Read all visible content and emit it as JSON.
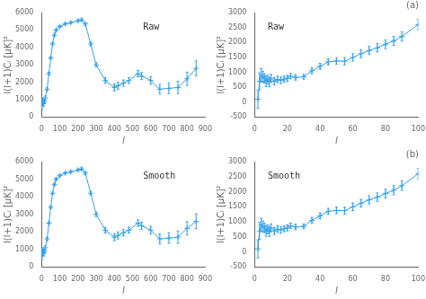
{
  "chart_data": [
    {
      "type": "line",
      "marker": "plus",
      "grid": false,
      "annotation": "Raw",
      "xlabel": "l",
      "ylabel": "l(l+1)Cₗ [μK]²",
      "xlim": [
        0,
        900
      ],
      "ylim": [
        0,
        6000
      ],
      "xticks": [
        0,
        100,
        200,
        300,
        400,
        500,
        600,
        700,
        800,
        900
      ],
      "yticks": [
        0,
        1000,
        2000,
        3000,
        4000,
        5000,
        6000
      ],
      "x": [
        2,
        4,
        6,
        8,
        10,
        15,
        20,
        30,
        40,
        50,
        60,
        70,
        80,
        100,
        130,
        160,
        200,
        220,
        240,
        270,
        300,
        350,
        400,
        420,
        450,
        480,
        530,
        550,
        600,
        650,
        700,
        750,
        800,
        850
      ],
      "values": [
        750,
        900,
        850,
        780,
        800,
        900,
        1100,
        1600,
        2500,
        3400,
        4200,
        4700,
        5000,
        5200,
        5350,
        5420,
        5530,
        5580,
        5350,
        4200,
        3000,
        2100,
        1700,
        1800,
        1950,
        2100,
        2500,
        2350,
        2100,
        1600,
        1650,
        1700,
        2200,
        2800
      ],
      "errors": [
        300,
        200,
        180,
        160,
        150,
        120,
        100,
        80,
        70,
        65,
        60,
        55,
        55,
        50,
        55,
        60,
        65,
        70,
        80,
        100,
        120,
        160,
        200,
        200,
        180,
        170,
        180,
        200,
        220,
        280,
        300,
        350,
        380,
        420
      ]
    },
    {
      "type": "line",
      "marker": "plus",
      "grid": false,
      "title": "(a)",
      "annotation": "Raw",
      "xlabel": "l",
      "ylabel": "l(l+1)Cₗ [μK]²",
      "xlim": [
        0,
        100
      ],
      "ylim": [
        -500,
        3000
      ],
      "xticks": [
        0,
        20,
        40,
        60,
        80,
        100
      ],
      "yticks": [
        -500,
        0,
        500,
        1000,
        1500,
        2000,
        2500,
        3000
      ],
      "x": [
        2,
        3,
        4,
        5,
        6,
        7,
        8,
        9,
        10,
        12,
        14,
        16,
        18,
        20,
        22,
        25,
        30,
        35,
        40,
        45,
        50,
        55,
        60,
        65,
        70,
        75,
        80,
        85,
        90,
        100
      ],
      "values": [
        100,
        700,
        900,
        850,
        800,
        700,
        750,
        680,
        800,
        700,
        760,
        730,
        770,
        800,
        870,
        830,
        850,
        1050,
        1200,
        1350,
        1380,
        1370,
        1500,
        1620,
        1730,
        1820,
        1940,
        2050,
        2200,
        2600
      ],
      "errors": [
        300,
        280,
        220,
        180,
        160,
        180,
        150,
        160,
        130,
        120,
        110,
        110,
        100,
        100,
        90,
        90,
        80,
        100,
        100,
        100,
        110,
        120,
        125,
        130,
        135,
        140,
        145,
        150,
        155,
        175
      ]
    },
    {
      "type": "line",
      "marker": "plus",
      "grid": false,
      "annotation": "Smooth",
      "xlabel": "l",
      "ylabel": "l(l+1)Cₗ [μK]²",
      "xlim": [
        0,
        900
      ],
      "ylim": [
        0,
        6000
      ],
      "xticks": [
        0,
        100,
        200,
        300,
        400,
        500,
        600,
        700,
        800,
        900
      ],
      "yticks": [
        0,
        1000,
        2000,
        3000,
        4000,
        5000,
        6000
      ],
      "x": [
        2,
        4,
        6,
        8,
        10,
        15,
        20,
        30,
        40,
        50,
        60,
        70,
        80,
        100,
        130,
        160,
        200,
        220,
        240,
        270,
        300,
        350,
        400,
        420,
        450,
        480,
        530,
        550,
        600,
        650,
        700,
        750,
        800,
        850
      ],
      "values": [
        750,
        900,
        850,
        780,
        800,
        900,
        1100,
        1600,
        2500,
        3400,
        4200,
        4700,
        5000,
        5200,
        5350,
        5420,
        5530,
        5580,
        5350,
        4200,
        3000,
        2100,
        1700,
        1800,
        1950,
        2100,
        2500,
        2350,
        2100,
        1600,
        1650,
        1700,
        2200,
        2600
      ],
      "errors": [
        300,
        200,
        180,
        160,
        150,
        120,
        100,
        80,
        70,
        65,
        60,
        55,
        55,
        50,
        55,
        60,
        65,
        70,
        80,
        100,
        120,
        160,
        200,
        200,
        180,
        170,
        180,
        200,
        220,
        280,
        300,
        350,
        380,
        420
      ]
    },
    {
      "type": "line",
      "marker": "plus",
      "grid": false,
      "title": "(b)",
      "annotation": "Smooth",
      "xlabel": "l",
      "ylabel": "l(l+1)Cₗ [μK]²",
      "xlim": [
        0,
        100
      ],
      "ylim": [
        -500,
        3000
      ],
      "xticks": [
        0,
        20,
        40,
        60,
        80,
        100
      ],
      "yticks": [
        -500,
        0,
        500,
        1000,
        1500,
        2000,
        2500,
        3000
      ],
      "x": [
        2,
        3,
        4,
        5,
        6,
        7,
        8,
        9,
        10,
        12,
        14,
        16,
        18,
        20,
        22,
        25,
        30,
        35,
        40,
        45,
        50,
        55,
        60,
        65,
        70,
        75,
        80,
        85,
        90,
        100
      ],
      "values": [
        100,
        700,
        900,
        850,
        800,
        700,
        750,
        680,
        800,
        700,
        760,
        730,
        770,
        800,
        870,
        830,
        850,
        1050,
        1200,
        1350,
        1380,
        1370,
        1500,
        1620,
        1730,
        1820,
        1940,
        2050,
        2200,
        2600
      ],
      "errors": [
        300,
        280,
        220,
        180,
        160,
        180,
        150,
        160,
        130,
        120,
        110,
        110,
        100,
        100,
        90,
        90,
        80,
        100,
        100,
        100,
        110,
        120,
        125,
        130,
        135,
        140,
        145,
        150,
        155,
        175
      ]
    }
  ]
}
